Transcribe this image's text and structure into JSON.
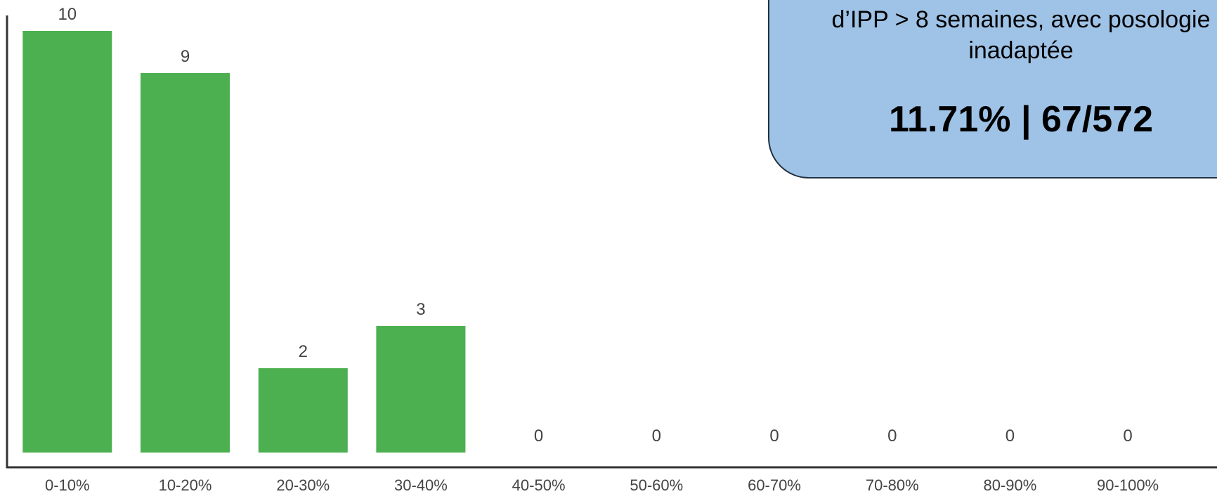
{
  "chart_data": {
    "type": "bar",
    "categories": [
      "0-10%",
      "10-20%",
      "20-30%",
      "30-40%",
      "40-50%",
      "50-60%",
      "60-70%",
      "70-80%",
      "80-90%",
      "90-100%"
    ],
    "values": [
      10,
      9,
      2,
      3,
      0,
      0,
      0,
      0,
      0,
      0
    ],
    "title": "",
    "xlabel": "",
    "ylabel": "",
    "ylim": [
      0,
      10
    ],
    "grid": false,
    "bar_color": "#4caf50",
    "axis_color": "#333333",
    "label_color": "#444444"
  },
  "callout": {
    "line1": "…",
    "line2": "d’IPP > 8 semaines, avec posologie",
    "line3": "inadaptée",
    "stat": "11.71% | 67/572",
    "background": "#9fc3e7"
  }
}
